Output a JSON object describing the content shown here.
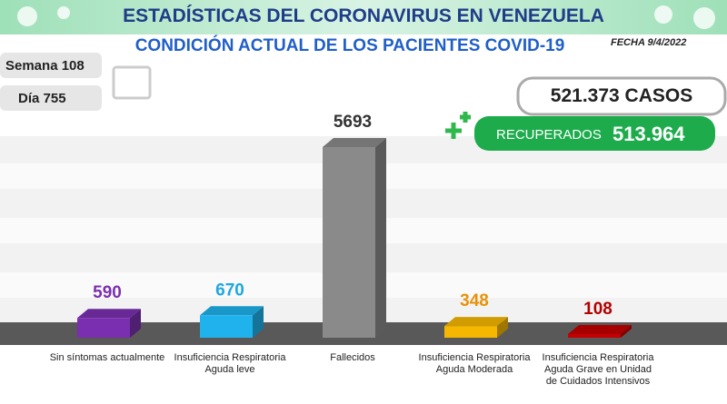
{
  "chart_data": {
    "type": "bar",
    "title": "ESTADÍSTICAS DEL CORONAVIRUS EN VENEZUELA",
    "subtitle": "CONDICIÓN ACTUAL DE LOS PACIENTES COVID-19",
    "date": "FECHA 9/4/2022",
    "week": "Semana 108",
    "day": "Día 755",
    "cases": "521.373 CASOS",
    "recovered_label": "RECUPERADOS",
    "recovered": "513.964",
    "categories": [
      "Sin síntomas actualmente",
      "Insuficiencia Respiratoria Aguda leve",
      "Fallecidos",
      "Insuficiencia Respiratoria Aguda Moderada",
      "Insuficiencia Respiratoria Aguda Grave en Unidad de Cuidados Intensivos"
    ],
    "values": [
      590,
      670,
      5693,
      348,
      108
    ],
    "colors": [
      "#7a2fb0",
      "#1fb2ec",
      "#8a8a8a",
      "#f5b700",
      "#c40000"
    ],
    "label_colors": [
      "#7a2fb0",
      "#1fa7e0",
      "#333333",
      "#e8920a",
      "#b30000"
    ]
  }
}
